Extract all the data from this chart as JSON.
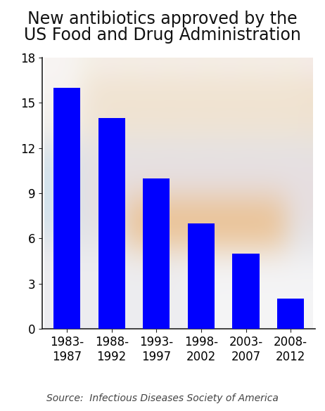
{
  "title_line1": "New antibiotics approved by the",
  "title_line2": "US Food and Drug Administration",
  "categories": [
    "1983-\n1987",
    "1988-\n1992",
    "1993-\n1997",
    "1998-\n2002",
    "2003-\n2007",
    "2008-\n2012"
  ],
  "values": [
    16,
    14,
    10,
    7,
    5,
    2
  ],
  "bar_color": "#0000ff",
  "ylim": [
    0,
    18
  ],
  "yticks": [
    0,
    3,
    6,
    9,
    12,
    15,
    18
  ],
  "source_text": "Source:  Infectious Diseases Society of America",
  "title_fontsize": 17,
  "tick_fontsize": 12,
  "source_fontsize": 10,
  "background_color": "#ffffff",
  "bar_alpha": 1.0,
  "bar_width": 0.6
}
